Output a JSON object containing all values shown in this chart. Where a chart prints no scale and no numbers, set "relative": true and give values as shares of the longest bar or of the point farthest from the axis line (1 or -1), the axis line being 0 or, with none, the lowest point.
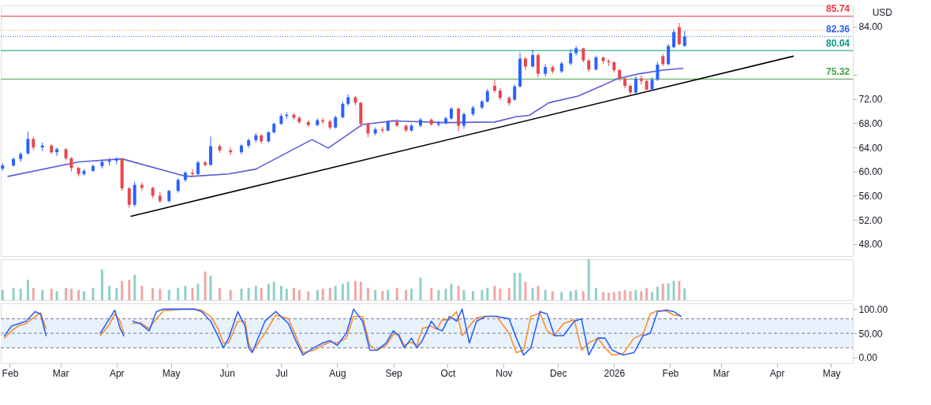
{
  "chart_data": [
    {
      "type": "candlestick",
      "x": [
        "2025-01-28",
        "2025-02-03",
        "2025-02-07",
        "2025-02-11",
        "2025-02-14",
        "2025-02-19",
        "2025-02-24",
        "2025-02-27",
        "2025-03-04",
        "2025-03-07",
        "2025-03-11",
        "2025-03-14",
        "2025-03-19",
        "2025-03-24",
        "2025-03-28",
        "2025-04-01",
        "2025-04-04",
        "2025-04-08",
        "2025-04-11",
        "2025-04-15",
        "2025-04-21",
        "2025-04-25",
        "2025-04-30",
        "2025-05-05",
        "2025-05-09",
        "2025-05-13",
        "2025-05-16",
        "2025-05-20",
        "2025-05-23",
        "2025-05-28",
        "2025-06-03",
        "2025-06-09",
        "2025-06-13",
        "2025-06-17",
        "2025-06-20",
        "2025-06-24",
        "2025-06-27",
        "2025-07-01",
        "2025-07-04",
        "2025-07-08",
        "2025-07-11",
        "2025-07-16",
        "2025-07-21",
        "2025-07-24",
        "2025-07-28",
        "2025-07-31",
        "2025-08-04",
        "2025-08-07",
        "2025-08-11",
        "2025-08-14",
        "2025-08-18",
        "2025-08-22",
        "2025-08-26",
        "2025-08-29",
        "2025-09-03",
        "2025-09-08",
        "2025-09-11",
        "2025-09-16",
        "2025-09-22",
        "2025-09-26",
        "2025-09-30",
        "2025-10-03",
        "2025-10-07",
        "2025-10-10",
        "2025-10-15",
        "2025-10-20",
        "2025-10-23",
        "2025-10-27",
        "2025-10-30",
        "2025-11-04",
        "2025-11-07",
        "2025-11-10",
        "2025-11-13",
        "2025-11-17",
        "2025-11-20",
        "2025-11-24",
        "2025-11-28",
        "2025-12-03",
        "2025-12-08",
        "2025-12-11",
        "2025-12-15",
        "2025-12-18",
        "2025-12-22",
        "2025-12-26",
        "2025-12-29",
        "2026-01-01",
        "2026-01-04",
        "2026-01-07",
        "2026-01-10",
        "2026-01-13",
        "2026-01-16",
        "2026-01-19",
        "2026-01-22",
        "2026-01-25",
        "2026-01-28",
        "2026-01-31",
        "2026-02-03",
        "2026-02-06",
        "2026-02-09"
      ],
      "ohlc": [
        [
          60.5,
          61.4,
          60.1,
          61.0
        ],
        [
          61.0,
          62.4,
          60.8,
          62.1
        ],
        [
          62.1,
          63.2,
          61.6,
          62.9
        ],
        [
          63.0,
          66.6,
          62.8,
          65.4
        ],
        [
          65.4,
          65.8,
          63.5,
          64.0
        ],
        [
          64.0,
          64.8,
          63.4,
          64.3
        ],
        [
          64.3,
          64.6,
          62.9,
          63.2
        ],
        [
          63.2,
          64.0,
          62.6,
          63.7
        ],
        [
          63.7,
          63.9,
          61.8,
          62.2
        ],
        [
          62.2,
          62.4,
          60.0,
          60.6
        ],
        [
          60.6,
          60.8,
          59.2,
          59.6
        ],
        [
          59.6,
          60.4,
          59.3,
          60.1
        ],
        [
          60.1,
          61.2,
          59.9,
          60.9
        ],
        [
          60.9,
          62.0,
          60.5,
          61.6
        ],
        [
          61.6,
          62.3,
          61.0,
          61.8
        ],
        [
          61.8,
          62.4,
          61.2,
          62.1
        ],
        [
          62.1,
          62.2,
          56.8,
          57.2
        ],
        [
          57.2,
          57.5,
          54.0,
          54.5
        ],
        [
          54.5,
          58.3,
          54.2,
          57.8
        ],
        [
          57.8,
          58.2,
          56.8,
          57.3
        ],
        [
          57.3,
          57.5,
          55.6,
          56.0
        ],
        [
          56.0,
          56.6,
          54.8,
          55.1
        ],
        [
          55.1,
          57.0,
          54.9,
          56.8
        ],
        [
          56.8,
          58.9,
          56.5,
          58.6
        ],
        [
          58.6,
          60.1,
          58.3,
          59.8
        ],
        [
          59.8,
          60.4,
          59.2,
          59.6
        ],
        [
          59.6,
          61.8,
          59.4,
          61.5
        ],
        [
          61.5,
          61.8,
          60.8,
          61.1
        ],
        [
          61.1,
          65.8,
          61.0,
          64.2
        ],
        [
          64.2,
          64.5,
          63.1,
          63.5
        ],
        [
          63.5,
          64.0,
          62.7,
          63.2
        ],
        [
          63.2,
          64.6,
          62.9,
          64.3
        ],
        [
          64.3,
          65.5,
          63.9,
          65.2
        ],
        [
          65.2,
          66.4,
          64.8,
          66.0
        ],
        [
          66.0,
          66.2,
          64.6,
          65.0
        ],
        [
          65.0,
          66.7,
          64.8,
          66.5
        ],
        [
          66.5,
          68.1,
          66.3,
          67.9
        ],
        [
          67.9,
          69.6,
          67.7,
          69.2
        ],
        [
          69.2,
          69.8,
          68.7,
          69.4
        ],
        [
          69.4,
          69.7,
          68.6,
          68.9
        ],
        [
          68.9,
          69.2,
          67.9,
          68.2
        ],
        [
          68.2,
          68.5,
          67.4,
          67.7
        ],
        [
          67.7,
          68.8,
          67.5,
          68.5
        ],
        [
          68.5,
          68.9,
          67.9,
          68.3
        ],
        [
          68.3,
          68.6,
          66.9,
          67.3
        ],
        [
          67.3,
          69.3,
          67.1,
          69.0
        ],
        [
          69.0,
          71.6,
          68.8,
          71.2
        ],
        [
          71.2,
          72.8,
          70.9,
          72.3
        ],
        [
          72.3,
          72.5,
          71.0,
          71.4
        ],
        [
          71.4,
          71.5,
          67.4,
          67.9
        ],
        [
          67.9,
          68.1,
          65.7,
          66.3
        ],
        [
          66.3,
          67.3,
          66.0,
          67.0
        ],
        [
          67.0,
          67.4,
          66.4,
          66.8
        ],
        [
          66.8,
          68.5,
          66.6,
          68.2
        ],
        [
          68.2,
          68.7,
          67.4,
          67.6
        ],
        [
          67.6,
          67.8,
          66.5,
          66.8
        ],
        [
          66.8,
          67.9,
          66.6,
          67.6
        ],
        [
          67.6,
          68.9,
          67.4,
          68.6
        ],
        [
          68.6,
          68.8,
          67.6,
          67.8
        ],
        [
          67.8,
          68.4,
          67.4,
          68.0
        ],
        [
          68.0,
          69.1,
          67.8,
          68.8
        ],
        [
          68.8,
          70.7,
          68.6,
          70.4
        ],
        [
          70.4,
          70.6,
          66.6,
          67.6
        ],
        [
          67.6,
          69.8,
          67.1,
          69.5
        ],
        [
          69.5,
          70.9,
          69.2,
          70.6
        ],
        [
          70.6,
          71.9,
          70.3,
          71.6
        ],
        [
          71.6,
          73.7,
          71.4,
          73.3
        ],
        [
          74.2,
          75.2,
          73.0,
          73.4
        ],
        [
          73.4,
          73.8,
          71.8,
          72.2
        ],
        [
          72.2,
          72.5,
          70.9,
          71.3
        ],
        [
          71.9,
          74.4,
          71.7,
          74.1
        ],
        [
          74.1,
          79.7,
          73.9,
          78.7
        ],
        [
          78.7,
          79.0,
          76.8,
          77.4
        ],
        [
          77.4,
          80.2,
          77.2,
          79.3
        ],
        [
          79.3,
          79.6,
          75.6,
          76.2
        ],
        [
          76.2,
          77.8,
          75.7,
          77.3
        ],
        [
          77.3,
          77.6,
          76.2,
          76.6
        ],
        [
          76.6,
          78.2,
          76.3,
          77.9
        ],
        [
          77.9,
          80.3,
          77.6,
          79.6
        ],
        [
          79.6,
          80.8,
          79.2,
          80.4
        ],
        [
          80.4,
          80.5,
          78.1,
          78.4
        ],
        [
          78.4,
          78.6,
          76.5,
          76.9
        ],
        [
          76.9,
          79.2,
          76.7,
          78.9
        ],
        [
          78.9,
          79.0,
          77.8,
          78.3
        ],
        [
          78.3,
          78.6,
          77.5,
          78.1
        ],
        [
          78.1,
          78.3,
          76.4,
          76.8
        ],
        [
          76.8,
          77.0,
          75.0,
          75.4
        ],
        [
          75.4,
          75.6,
          73.8,
          74.2
        ],
        [
          74.2,
          74.5,
          72.7,
          73.1
        ],
        [
          73.1,
          75.8,
          72.9,
          75.4
        ],
        [
          75.4,
          75.9,
          74.4,
          75.0
        ],
        [
          75.0,
          75.2,
          73.2,
          73.6
        ],
        [
          73.6,
          75.6,
          73.4,
          75.2
        ],
        [
          75.2,
          78.2,
          75.0,
          77.7
        ],
        [
          79.1,
          79.5,
          77.5,
          77.8
        ],
        [
          77.8,
          81.1,
          77.6,
          80.8
        ],
        [
          80.6,
          83.6,
          80.4,
          83.1
        ],
        [
          83.9,
          84.6,
          80.9,
          81.1
        ],
        [
          80.8,
          83.3,
          80.7,
          82.36
        ]
      ],
      "colors": [
        "#2962ff",
        "#2962ff",
        "#2962ff",
        "#2962ff",
        "#e8474d",
        "#2962ff",
        "#e8474d",
        "#2962ff",
        "#e8474d",
        "#e8474d",
        "#e8474d",
        "#2962ff",
        "#2962ff",
        "#2962ff",
        "#2962ff",
        "#2962ff",
        "#e8474d",
        "#e8474d",
        "#2962ff",
        "#e8474d",
        "#e8474d",
        "#e8474d",
        "#2962ff",
        "#2962ff",
        "#2962ff",
        "#e8474d",
        "#2962ff",
        "#e8474d",
        "#2962ff",
        "#e8474d",
        "#e8474d",
        "#2962ff",
        "#2962ff",
        "#2962ff",
        "#e8474d",
        "#2962ff",
        "#2962ff",
        "#2962ff",
        "#2962ff",
        "#e8474d",
        "#e8474d",
        "#e8474d",
        "#2962ff",
        "#e8474d",
        "#e8474d",
        "#2962ff",
        "#2962ff",
        "#2962ff",
        "#e8474d",
        "#e8474d",
        "#e8474d",
        "#2962ff",
        "#e8474d",
        "#2962ff",
        "#e8474d",
        "#e8474d",
        "#2962ff",
        "#2962ff",
        "#e8474d",
        "#2962ff",
        "#2962ff",
        "#2962ff",
        "#e8474d",
        "#2962ff",
        "#2962ff",
        "#2962ff",
        "#2962ff",
        "#e8474d",
        "#e8474d",
        "#e8474d",
        "#2962ff",
        "#2962ff",
        "#e8474d",
        "#2962ff",
        "#e8474d",
        "#2962ff",
        "#e8474d",
        "#2962ff",
        "#2962ff",
        "#2962ff",
        "#e8474d",
        "#e8474d",
        "#2962ff",
        "#e8474d",
        "#e8474d",
        "#e8474d",
        "#e8474d",
        "#e8474d",
        "#e8474d",
        "#2962ff",
        "#e8474d",
        "#e8474d",
        "#2962ff",
        "#2962ff",
        "#e8474d",
        "#2962ff",
        "#2962ff",
        "#e8474d",
        "#2962ff"
      ],
      "series": [
        {
          "type": "line",
          "color": "#5b5bd6",
          "x": [
            "2025-01-31",
            "2025-03-11",
            "2025-04-04",
            "2025-05-08",
            "2025-05-12",
            "2025-06-02",
            "2025-06-17",
            "2025-07-18",
            "2025-07-27",
            "2025-08-15",
            "2025-09-01",
            "2025-09-30",
            "2025-10-27",
            "2025-11-08",
            "2025-11-15",
            "2025-11-26",
            "2025-12-12",
            "2025-12-26",
            "2026-01-03",
            "2026-01-15",
            "2026-01-28",
            "2026-02-08"
          ],
          "values": [
            59.2,
            61.6,
            62.1,
            59.3,
            59.2,
            59.6,
            60.4,
            65.3,
            63.9,
            67.8,
            68.4,
            68.1,
            68.2,
            69.1,
            69.3,
            71.4,
            72.5,
            74.3,
            75.4,
            76.2,
            76.8,
            77.1
          ]
        },
        {
          "type": "line",
          "color": "#000000",
          "x": [
            "2025-04-09",
            "2026-04-10"
          ],
          "values": [
            52.6,
            79.1
          ]
        }
      ],
      "xlim": [
        "2025-01-27",
        "2026-05-13"
      ],
      "ylim": [
        46,
        87.5
      ],
      "yticks": [
        {
          "value": 48,
          "label": "48.00"
        },
        {
          "value": 52,
          "label": "52.00"
        },
        {
          "value": 56,
          "label": "56.00"
        },
        {
          "value": 60,
          "label": "60.00"
        },
        {
          "value": 64,
          "label": "64.00"
        },
        {
          "value": 68,
          "label": "68.00"
        },
        {
          "value": 72,
          "label": "72.00"
        },
        {
          "value": 76,
          "label": null
        },
        {
          "value": 84,
          "label": "84.00"
        }
      ],
      "ref_lines": [
        {
          "axis": "y",
          "value": 85.74,
          "label": "85.74",
          "color": "#f23645",
          "line_style": "solid"
        },
        {
          "axis": "y",
          "value": 83.4,
          "label": null,
          "color": "#f7a350",
          "line_style": "dotted"
        },
        {
          "axis": "y",
          "value": 82.36,
          "label": "82.36",
          "color": "#2962ff",
          "line_style": "dotted"
        },
        {
          "axis": "y",
          "value": 80.04,
          "label": "80.04",
          "color": "#089981",
          "line_style": "solid"
        },
        {
          "axis": "y",
          "value": 75.32,
          "label": "75.32",
          "color": "#43a047",
          "line_style": "solid"
        }
      ],
      "annotations": [
        "USD"
      ],
      "tick_labels": "y"
    },
    {
      "type": "bar",
      "relative": true,
      "x": [
        "2025-01-28",
        "2025-02-03",
        "2025-02-07",
        "2025-02-11",
        "2025-02-14",
        "2025-02-19",
        "2025-02-24",
        "2025-02-27",
        "2025-03-04",
        "2025-03-07",
        "2025-03-11",
        "2025-03-14",
        "2025-03-19",
        "2025-03-24",
        "2025-03-28",
        "2025-04-01",
        "2025-04-04",
        "2025-04-08",
        "2025-04-11",
        "2025-04-15",
        "2025-04-21",
        "2025-04-25",
        "2025-04-30",
        "2025-05-05",
        "2025-05-09",
        "2025-05-13",
        "2025-05-16",
        "2025-05-20",
        "2025-05-23",
        "2025-05-28",
        "2025-06-03",
        "2025-06-09",
        "2025-06-13",
        "2025-06-17",
        "2025-06-20",
        "2025-06-24",
        "2025-06-27",
        "2025-07-01",
        "2025-07-04",
        "2025-07-08",
        "2025-07-11",
        "2025-07-16",
        "2025-07-21",
        "2025-07-24",
        "2025-07-28",
        "2025-07-31",
        "2025-08-04",
        "2025-08-07",
        "2025-08-11",
        "2025-08-14",
        "2025-08-18",
        "2025-08-22",
        "2025-08-26",
        "2025-08-29",
        "2025-09-03",
        "2025-09-08",
        "2025-09-11",
        "2025-09-16",
        "2025-09-22",
        "2025-09-26",
        "2025-09-30",
        "2025-10-03",
        "2025-10-07",
        "2025-10-10",
        "2025-10-15",
        "2025-10-20",
        "2025-10-23",
        "2025-10-27",
        "2025-10-30",
        "2025-11-04",
        "2025-11-07",
        "2025-11-10",
        "2025-11-13",
        "2025-11-17",
        "2025-11-20",
        "2025-11-24",
        "2025-11-28",
        "2025-12-03",
        "2025-12-08",
        "2025-12-11",
        "2025-12-15",
        "2025-12-18",
        "2025-12-22",
        "2025-12-26",
        "2025-12-29",
        "2026-01-01",
        "2026-01-04",
        "2026-01-07",
        "2026-01-10",
        "2026-01-13",
        "2026-01-16",
        "2026-01-19",
        "2026-01-22",
        "2026-01-25",
        "2026-01-28",
        "2026-01-31",
        "2026-02-03",
        "2026-02-06",
        "2026-02-09"
      ],
      "values": [
        0.25,
        0.3,
        0.28,
        0.5,
        0.3,
        0.25,
        0.28,
        0.22,
        0.3,
        0.28,
        0.25,
        0.22,
        0.3,
        0.75,
        0.35,
        0.3,
        0.47,
        0.5,
        0.62,
        0.35,
        0.3,
        0.28,
        0.25,
        0.3,
        0.35,
        0.3,
        0.4,
        0.7,
        0.6,
        0.3,
        0.25,
        0.28,
        0.3,
        0.35,
        0.3,
        0.4,
        0.45,
        0.35,
        0.28,
        0.3,
        0.25,
        0.22,
        0.25,
        0.28,
        0.3,
        0.35,
        0.4,
        0.45,
        0.47,
        0.45,
        0.3,
        0.25,
        0.22,
        0.25,
        0.3,
        0.25,
        0.28,
        0.55,
        0.3,
        0.25,
        0.28,
        0.4,
        0.35,
        0.25,
        0.22,
        0.25,
        0.3,
        0.35,
        0.28,
        0.3,
        0.67,
        0.67,
        0.45,
        0.3,
        0.35,
        0.25,
        0.22,
        0.2,
        0.22,
        0.25,
        0.22,
        1.0,
        0.3,
        0.2,
        0.18,
        0.2,
        0.22,
        0.25,
        0.22,
        0.25,
        0.22,
        0.3,
        0.2,
        0.33,
        0.4,
        0.41,
        0.47,
        0.47,
        0.29
      ],
      "colors": [
        "#8fd0c9",
        "#8fd0c9",
        "#8fd0c9",
        "#8fd0c9",
        "#f2a6a4",
        "#8fd0c9",
        "#f2a6a4",
        "#8fd0c9",
        "#f2a6a4",
        "#f2a6a4",
        "#f2a6a4",
        "#8fd0c9",
        "#8fd0c9",
        "#8fd0c9",
        "#8fd0c9",
        "#8fd0c9",
        "#f2a6a4",
        "#f2a6a4",
        "#8fd0c9",
        "#f2a6a4",
        "#f2a6a4",
        "#f2a6a4",
        "#8fd0c9",
        "#8fd0c9",
        "#8fd0c9",
        "#f2a6a4",
        "#8fd0c9",
        "#f2a6a4",
        "#8fd0c9",
        "#f2a6a4",
        "#f2a6a4",
        "#8fd0c9",
        "#8fd0c9",
        "#8fd0c9",
        "#f2a6a4",
        "#8fd0c9",
        "#8fd0c9",
        "#8fd0c9",
        "#8fd0c9",
        "#f2a6a4",
        "#f2a6a4",
        "#f2a6a4",
        "#8fd0c9",
        "#f2a6a4",
        "#f2a6a4",
        "#8fd0c9",
        "#8fd0c9",
        "#8fd0c9",
        "#f2a6a4",
        "#f2a6a4",
        "#f2a6a4",
        "#8fd0c9",
        "#f2a6a4",
        "#8fd0c9",
        "#f2a6a4",
        "#f2a6a4",
        "#8fd0c9",
        "#8fd0c9",
        "#f2a6a4",
        "#8fd0c9",
        "#8fd0c9",
        "#8fd0c9",
        "#f2a6a4",
        "#8fd0c9",
        "#8fd0c9",
        "#8fd0c9",
        "#8fd0c9",
        "#f2a6a4",
        "#f2a6a4",
        "#f2a6a4",
        "#8fd0c9",
        "#8fd0c9",
        "#f2a6a4",
        "#8fd0c9",
        "#f2a6a4",
        "#8fd0c9",
        "#f2a6a4",
        "#8fd0c9",
        "#8fd0c9",
        "#8fd0c9",
        "#f2a6a4",
        "#8fd0c9",
        "#8fd0c9",
        "#f2a6a4",
        "#f2a6a4",
        "#f2a6a4",
        "#f2a6a4",
        "#f2a6a4",
        "#f2a6a4",
        "#8fd0c9",
        "#f2a6a4",
        "#f2a6a4",
        "#8fd0c9",
        "#8fd0c9",
        "#f2a6a4",
        "#8fd0c9",
        "#8fd0c9",
        "#f2a6a4",
        "#8fd0c9"
      ],
      "xlim": [
        "2025-01-27",
        "2026-05-13"
      ],
      "tick_labels": false
    },
    {
      "type": "line",
      "x": [
        "2025-01-29",
        "2025-02-02",
        "2025-02-06",
        "2025-02-10",
        "2025-02-15",
        "2025-02-18",
        "2025-02-21",
        "2025-03-07",
        "2025-03-23",
        "2025-03-28",
        "2025-03-31",
        "2025-04-03",
        "2025-04-05",
        "2025-04-07",
        "2025-04-10",
        "2025-04-14",
        "2025-04-19",
        "2025-04-23",
        "2025-04-27",
        "2025-05-08",
        "2025-05-14",
        "2025-05-18",
        "2025-05-23",
        "2025-05-27",
        "2025-05-30",
        "2025-06-02",
        "2025-06-07",
        "2025-06-11",
        "2025-06-13",
        "2025-06-15",
        "2025-06-22",
        "2025-06-28",
        "2025-07-05",
        "2025-07-09",
        "2025-07-13",
        "2025-07-19",
        "2025-07-24",
        "2025-07-28",
        "2025-08-01",
        "2025-08-06",
        "2025-08-10",
        "2025-08-15",
        "2025-08-19",
        "2025-08-23",
        "2025-08-28",
        "2025-09-01",
        "2025-09-04",
        "2025-09-07",
        "2025-09-11",
        "2025-09-14",
        "2025-09-17",
        "2025-09-22",
        "2025-09-25",
        "2025-09-28",
        "2025-10-02",
        "2025-10-06",
        "2025-10-09",
        "2025-10-13",
        "2025-10-17",
        "2025-10-22",
        "2025-10-28",
        "2025-11-04",
        "2025-11-08",
        "2025-11-12",
        "2025-11-16",
        "2025-11-21",
        "2025-11-25",
        "2025-11-29",
        "2025-12-04",
        "2025-12-10",
        "2025-12-14",
        "2025-12-18",
        "2025-12-23",
        "2025-12-27",
        "2025-12-31",
        "2026-01-06",
        "2026-01-12",
        "2026-01-17",
        "2026-01-21",
        "2026-01-25",
        "2026-01-30",
        "2026-02-03",
        "2026-02-07"
      ],
      "series": [
        {
          "color": "#ff8c2e",
          "values": [
            40,
            55,
            66,
            70,
            85,
            92,
            60,
            null,
            45,
            68,
            90,
            75,
            50,
            null,
            70,
            72,
            60,
            80,
            97,
            100,
            100,
            98,
            85,
            60,
            30,
            30,
            75,
            75,
            30,
            12,
            50,
            88,
            80,
            45,
            10,
            15,
            25,
            32,
            30,
            40,
            85,
            85,
            25,
            15,
            25,
            48,
            48,
            25,
            32,
            25,
            60,
            65,
            58,
            78,
            78,
            95,
            45,
            65,
            82,
            85,
            85,
            50,
            10,
            15,
            85,
            92,
            55,
            45,
            70,
            78,
            15,
            30,
            40,
            20,
            5,
            8,
            40,
            48,
            90,
            97,
            96,
            88,
            86
          ]
        },
        {
          "color": "#2962ff",
          "values": [
            45,
            65,
            70,
            75,
            95,
            90,
            45,
            null,
            50,
            80,
            98,
            60,
            45,
            null,
            75,
            70,
            55,
            95,
            100,
            100,
            100,
            95,
            75,
            45,
            20,
            40,
            95,
            65,
            20,
            10,
            75,
            95,
            70,
            35,
            5,
            20,
            30,
            35,
            25,
            50,
            100,
            75,
            15,
            15,
            30,
            55,
            45,
            20,
            40,
            20,
            35,
            75,
            60,
            55,
            85,
            75,
            100,
            30,
            75,
            85,
            85,
            80,
            40,
            5,
            20,
            95,
            90,
            45,
            45,
            75,
            80,
            5,
            40,
            40,
            15,
            5,
            10,
            45,
            50,
            95,
            98,
            95,
            85
          ]
        }
      ],
      "xlim": [
        "2025-01-27",
        "2026-05-13"
      ],
      "xticks": [
        {
          "value": "2025-02-01",
          "label": "Feb"
        },
        {
          "value": "2025-03-01",
          "label": "Mar"
        },
        {
          "value": "2025-04-01",
          "label": "Apr"
        },
        {
          "value": "2025-05-01",
          "label": "May"
        },
        {
          "value": "2025-06-01",
          "label": "Jun"
        },
        {
          "value": "2025-07-01",
          "label": "Jul"
        },
        {
          "value": "2025-08-01",
          "label": "Aug"
        },
        {
          "value": "2025-09-01",
          "label": "Sep"
        },
        {
          "value": "2025-10-01",
          "label": "Oct"
        },
        {
          "value": "2025-11-01",
          "label": "Nov"
        },
        {
          "value": "2025-12-01",
          "label": "Dec"
        },
        {
          "value": "2026-01-01",
          "label": "2026"
        },
        {
          "value": "2026-02-01",
          "label": "Feb"
        },
        {
          "value": "2026-03-01",
          "label": "Mar"
        },
        {
          "value": "2026-04-01",
          "label": "Apr"
        },
        {
          "value": "2026-05-01",
          "label": "May"
        }
      ],
      "ylim": [
        -12,
        112
      ],
      "yticks": [
        {
          "value": 0,
          "label": "0.00"
        },
        {
          "value": 50,
          "label": "50.00"
        },
        {
          "value": 100,
          "label": "100.00"
        }
      ],
      "ref_lines": [
        {
          "axis": "y",
          "value": 80,
          "label": null,
          "color": "#787b86",
          "line_style": "dashed"
        },
        {
          "axis": "y",
          "value": 50,
          "label": null,
          "color": "#787b86",
          "line_style": "dashed"
        },
        {
          "axis": "y",
          "value": 20,
          "label": null,
          "color": "#787b86",
          "line_style": "dashed"
        }
      ],
      "bands": [
        {
          "axis": "y",
          "from": 20,
          "to": 80,
          "label": null,
          "color": "#e8f2fd"
        }
      ]
    }
  ]
}
